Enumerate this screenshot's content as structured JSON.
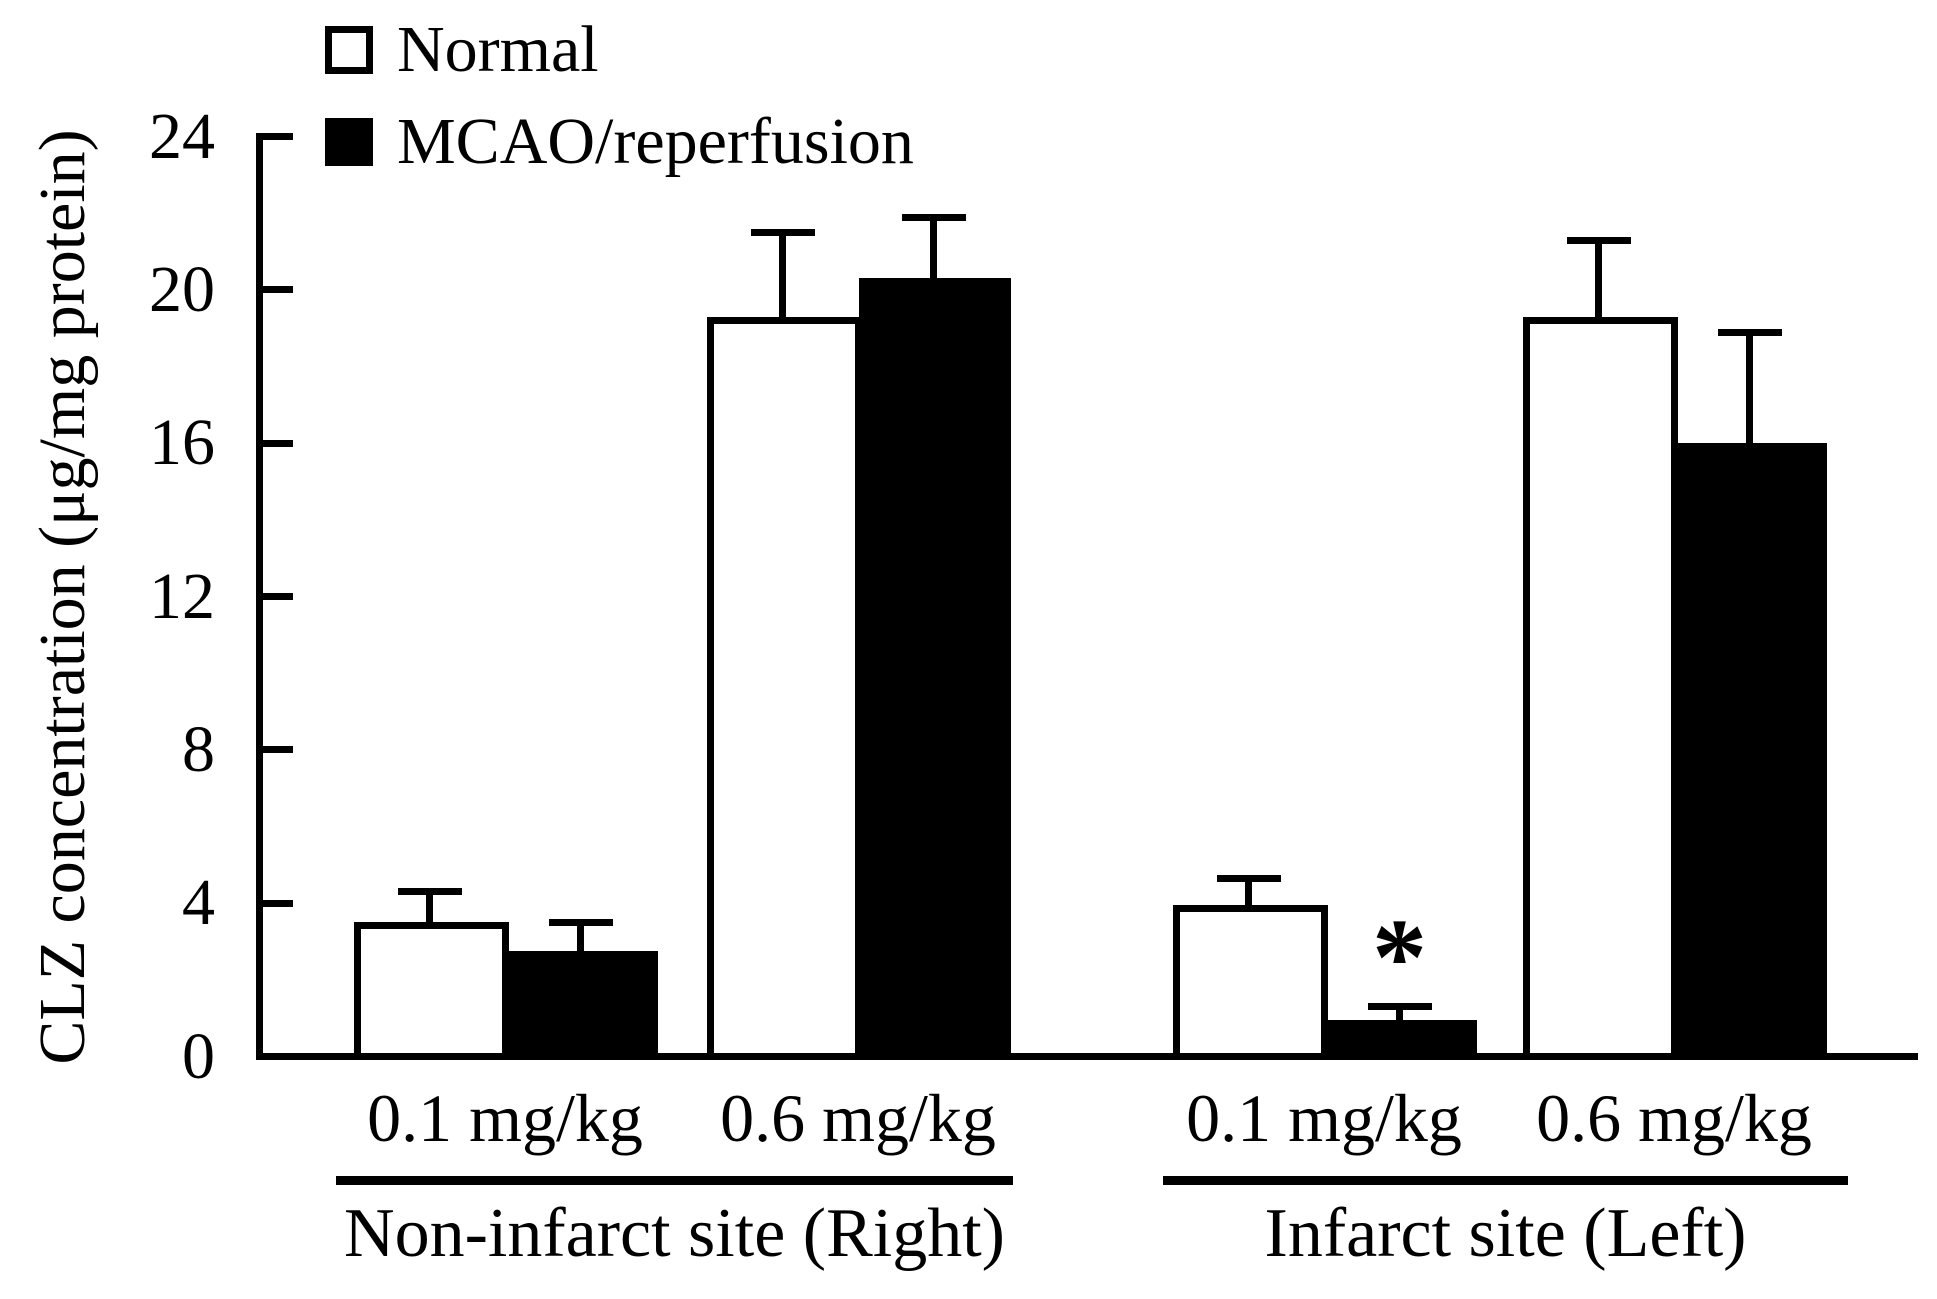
{
  "figure": {
    "background": "#ffffff",
    "ink_color": "#000000"
  },
  "chart_data": {
    "type": "bar",
    "title": "",
    "xlabel": "",
    "ylabel": "CLZ concentration (μg/mg protein)",
    "ylim": [
      0,
      24
    ],
    "yticks": [
      0,
      4,
      8,
      12,
      16,
      20,
      24
    ],
    "grid": false,
    "legend_position": "top-left",
    "error_bars": "upward SD whiskers with T caps",
    "legend": [
      {
        "name": "Normal",
        "fill": "#ffffff",
        "outline": "#000000"
      },
      {
        "name": "MCAO/reperfusion",
        "fill": "#000000",
        "outline": "#000000"
      }
    ],
    "sites": [
      {
        "label": "Non-infarct site (Right)",
        "doses": [
          {
            "label": "0.1 mg/kg",
            "bars": [
              {
                "series": "Normal",
                "value": 3.5,
                "sd": 0.8,
                "annotation": ""
              },
              {
                "series": "MCAO/reperfusion",
                "value": 2.75,
                "sd": 0.75,
                "annotation": ""
              }
            ]
          },
          {
            "label": "0.6 mg/kg",
            "bars": [
              {
                "series": "Normal",
                "value": 19.3,
                "sd": 2.2,
                "annotation": ""
              },
              {
                "series": "MCAO/reperfusion",
                "value": 20.3,
                "sd": 1.6,
                "annotation": ""
              }
            ]
          }
        ]
      },
      {
        "label": "Infarct site (Left)",
        "doses": [
          {
            "label": "0.1 mg/kg",
            "bars": [
              {
                "series": "Normal",
                "value": 3.95,
                "sd": 0.7,
                "annotation": ""
              },
              {
                "series": "MCAO/reperfusion",
                "value": 0.95,
                "sd": 0.35,
                "annotation": "*"
              }
            ]
          },
          {
            "label": "0.6 mg/kg",
            "bars": [
              {
                "series": "Normal",
                "value": 19.3,
                "sd": 2.0,
                "annotation": ""
              },
              {
                "series": "MCAO/reperfusion",
                "value": 16.0,
                "sd": 2.9,
                "annotation": ""
              }
            ]
          }
        ]
      }
    ]
  }
}
